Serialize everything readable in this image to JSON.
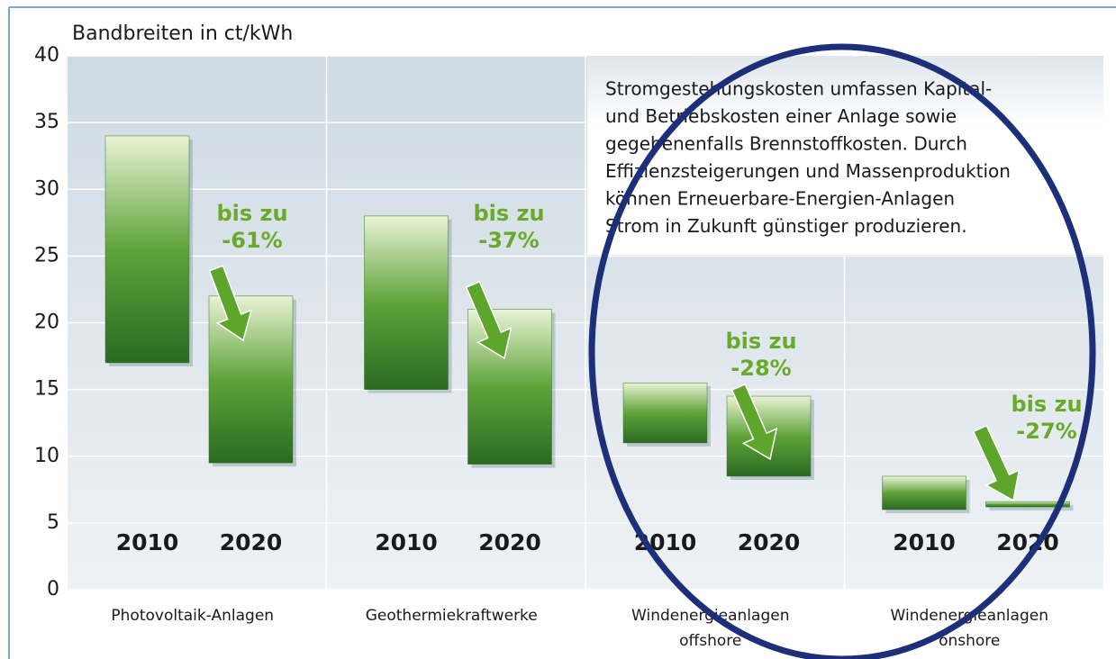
{
  "chart_data": {
    "type": "rangebar",
    "ylabel": "Bandbreiten in ct/kWh",
    "ylim": [
      0,
      40
    ],
    "yticks": [
      0,
      5,
      10,
      15,
      20,
      25,
      30,
      35,
      40
    ],
    "grid": true,
    "categories": [
      "Photovoltaik-Anlagen",
      "Geothermiekraftwerke",
      "Windenergieanlagen\noffshore",
      "Windenergieanlagen\nonshore"
    ],
    "series": [
      {
        "name": "2010",
        "color": "#2f7a25",
        "low": [
          17,
          15,
          11,
          6
        ],
        "high": [
          34,
          28,
          15.5,
          8.5
        ]
      },
      {
        "name": "2020",
        "color": "#2f7a25",
        "low": [
          9.5,
          9.4,
          8.5,
          6.2
        ],
        "high": [
          22,
          21,
          14.5,
          6.6
        ]
      }
    ],
    "annotations": [
      "bis zu\n-61%",
      "bis zu\n-37%",
      "bis zu\n-28%",
      "bis zu\n-27%"
    ],
    "note": [
      "Stromgestehungskosten umfassen Kapital-",
      "und Betriebskosten einer Anlage sowie",
      "gegebenenfalls Brennstoffkosten. Durch",
      "Effizienzsteigerungen und Massenproduktion",
      "können Erneuerbare-Energien-Anlagen",
      "Strom in Zukunft günstiger produzieren."
    ]
  }
}
